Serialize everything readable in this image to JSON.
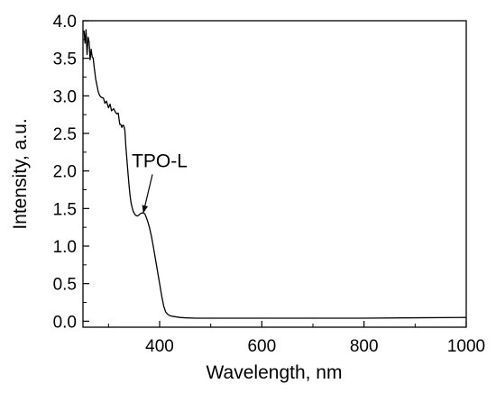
{
  "chart_data": {
    "type": "line",
    "xlabel": "Wavelength, nm",
    "ylabel": "Intensity, a.u.",
    "xlim": [
      250,
      1000
    ],
    "ylim": [
      -0.08,
      4.0
    ],
    "x_ticks": [
      400,
      600,
      800,
      1000
    ],
    "x_tick_labels": [
      "400",
      "600",
      "800",
      "1000"
    ],
    "y_ticks": [
      0.0,
      0.5,
      1.0,
      1.5,
      2.0,
      2.5,
      3.0,
      3.5,
      4.0
    ],
    "y_tick_labels": [
      "0.0",
      "0.5",
      "1.0",
      "1.5",
      "2.0",
      "2.5",
      "3.0",
      "3.5",
      "4.0"
    ],
    "grid": false,
    "legend": false,
    "series": [
      {
        "color": "#000000",
        "x": [
          252,
          254,
          256,
          258,
          260,
          262,
          264,
          266,
          268,
          270,
          272,
          275,
          278,
          280,
          283,
          286,
          290,
          293,
          296,
          300,
          303,
          306,
          310,
          313,
          316,
          319,
          322,
          324,
          326,
          328,
          330,
          332,
          334,
          336,
          338,
          340,
          342,
          344,
          346,
          348,
          350,
          353,
          356,
          359,
          362,
          365,
          368,
          371,
          374,
          377,
          380,
          384,
          388,
          392,
          396,
          400,
          404,
          408,
          412,
          416,
          420,
          425,
          430,
          440,
          450,
          470,
          500,
          550,
          600,
          700,
          800,
          900,
          1000
        ],
        "y": [
          3.87,
          3.7,
          3.88,
          3.55,
          3.78,
          3.72,
          3.48,
          3.62,
          3.52,
          3.5,
          3.38,
          3.22,
          3.12,
          3.05,
          3.0,
          2.98,
          2.97,
          2.9,
          2.93,
          2.84,
          2.89,
          2.8,
          2.83,
          2.79,
          2.76,
          2.77,
          2.62,
          2.62,
          2.58,
          2.61,
          2.6,
          2.54,
          2.32,
          2.15,
          1.98,
          1.82,
          1.68,
          1.58,
          1.52,
          1.47,
          1.44,
          1.41,
          1.4,
          1.41,
          1.43,
          1.44,
          1.44,
          1.43,
          1.38,
          1.32,
          1.25,
          1.13,
          0.98,
          0.82,
          0.66,
          0.5,
          0.34,
          0.2,
          0.12,
          0.09,
          0.075,
          0.065,
          0.06,
          0.05,
          0.045,
          0.04,
          0.04,
          0.04,
          0.04,
          0.04,
          0.04,
          0.045,
          0.05
        ]
      }
    ],
    "annotations": [
      {
        "text": "TPO-L",
        "x": 400,
        "y": 2.05,
        "arrow_to": [
          368,
          1.44
        ]
      }
    ]
  }
}
